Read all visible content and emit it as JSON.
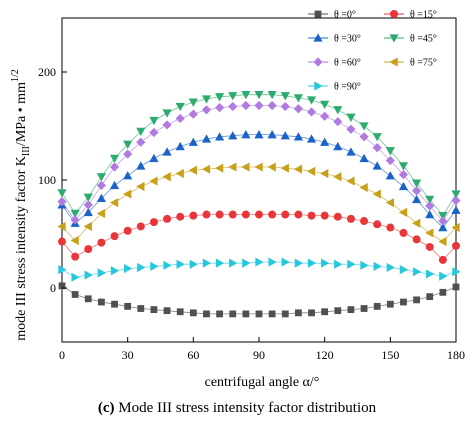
{
  "chart_data": {
    "type": "scatter",
    "xlabel": "centrifugal angle  α/°",
    "ylabel": "mode  III  stress intensity factor  K",
    "ylabel_sub": "III",
    "ylabel_units": "/MPa • mm",
    "ylabel_sup": "1/2",
    "caption_prefix": "(c)",
    "caption_text": "Mode III stress intensity factor distribution",
    "xlim": [
      0,
      180
    ],
    "ylim": [
      -50,
      250
    ],
    "x_ticks": [
      0,
      30,
      60,
      90,
      120,
      150,
      180
    ],
    "y_ticks": [
      0,
      100,
      200
    ],
    "x_tick_labels": [
      "0",
      "30",
      "60",
      "90",
      "120",
      "150",
      "180"
    ],
    "y_tick_labels": [
      "0",
      "100",
      "200"
    ],
    "legend_position": "top-right",
    "x": [
      0,
      6,
      12,
      18,
      24,
      30,
      36,
      42,
      48,
      54,
      60,
      66,
      72,
      78,
      84,
      90,
      96,
      102,
      108,
      114,
      120,
      126,
      132,
      138,
      144,
      150,
      156,
      162,
      168,
      174,
      180
    ],
    "series": [
      {
        "name": "θ =0°",
        "marker": "square",
        "color": "#505050",
        "values": [
          2,
          -6,
          -10,
          -13,
          -15,
          -17,
          -19,
          -20,
          -21,
          -22,
          -23,
          -24,
          -24,
          -24,
          -24,
          -24,
          -24,
          -24,
          -23,
          -23,
          -22,
          -21,
          -20,
          -19,
          -17,
          -15,
          -13,
          -11,
          -8,
          -4,
          1
        ]
      },
      {
        "name": "θ =15°",
        "marker": "circle",
        "color": "#e8363a",
        "values": [
          43,
          29,
          36,
          42,
          48,
          53,
          57,
          61,
          64,
          66,
          67,
          68,
          68,
          68,
          68,
          68,
          68,
          68,
          68,
          67,
          67,
          66,
          64,
          62,
          59,
          56,
          51,
          45,
          38,
          26,
          39
        ]
      },
      {
        "name": "θ =30°",
        "marker": "triangle-up",
        "color": "#1a63c8",
        "values": [
          77,
          60,
          70,
          83,
          95,
          104,
          113,
          120,
          126,
          131,
          135,
          138,
          140,
          141,
          142,
          142,
          142,
          141,
          140,
          138,
          135,
          131,
          126,
          120,
          113,
          104,
          94,
          82,
          68,
          56,
          72
        ]
      },
      {
        "name": "θ =45°",
        "marker": "triangle-down",
        "color": "#2eab6e",
        "values": [
          88,
          69,
          84,
          103,
          120,
          133,
          145,
          155,
          162,
          168,
          172,
          175,
          177,
          178,
          179,
          179,
          179,
          178,
          176,
          174,
          170,
          165,
          158,
          150,
          140,
          127,
          113,
          97,
          82,
          67,
          87
        ]
      },
      {
        "name": "θ =60°",
        "marker": "diamond",
        "color": "#b07ae0",
        "values": [
          80,
          63,
          77,
          95,
          112,
          124,
          135,
          144,
          151,
          157,
          161,
          165,
          167,
          168,
          169,
          169,
          169,
          168,
          166,
          163,
          159,
          154,
          147,
          140,
          130,
          118,
          105,
          90,
          76,
          62,
          81
        ]
      },
      {
        "name": "θ =75°",
        "marker": "triangle-left",
        "color": "#c8a01a",
        "values": [
          57,
          44,
          57,
          69,
          79,
          87,
          94,
          99,
          103,
          106,
          109,
          110,
          111,
          112,
          112,
          112,
          112,
          111,
          110,
          108,
          106,
          103,
          99,
          93,
          87,
          79,
          70,
          60,
          51,
          43,
          56
        ]
      },
      {
        "name": "θ =90°",
        "marker": "triangle-right",
        "color": "#27c8dc",
        "values": [
          17,
          10,
          12,
          14,
          16,
          18,
          19,
          20,
          21,
          22,
          22,
          23,
          23,
          23,
          23,
          24,
          24,
          24,
          23,
          23,
          23,
          22,
          22,
          21,
          20,
          19,
          17,
          15,
          13,
          11,
          15
        ]
      }
    ]
  }
}
